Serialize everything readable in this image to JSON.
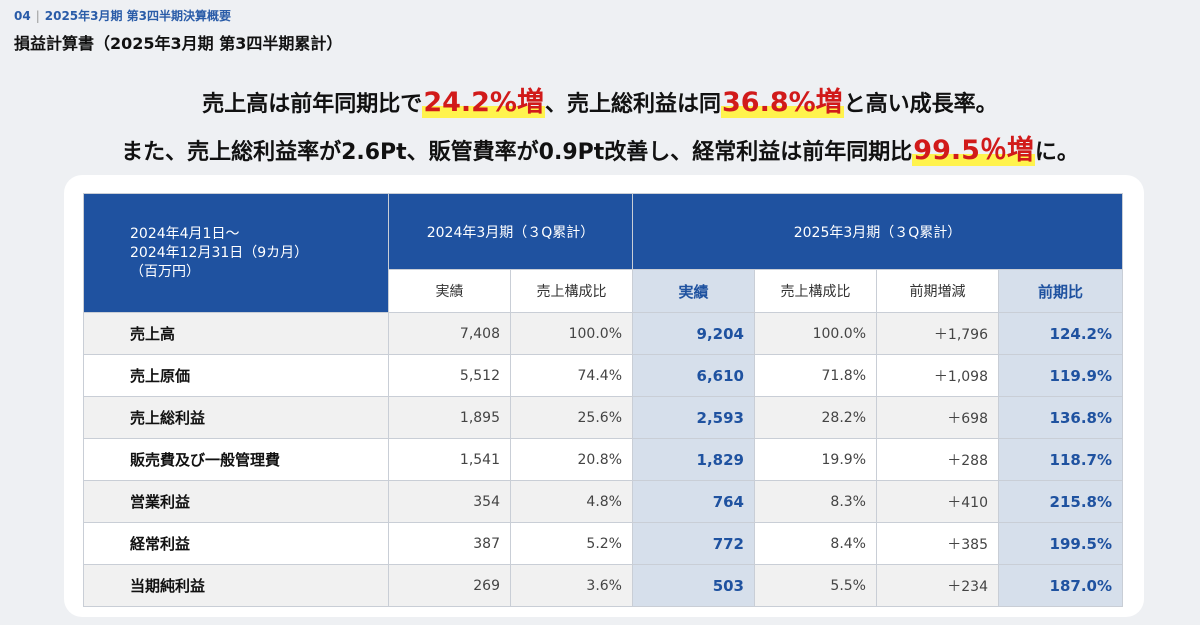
{
  "breadcrumb": {
    "num": "04",
    "text": "2025年3月期 第3四半期決算概要"
  },
  "page_title": "損益計算書（2025年3月期 第3四半期累計）",
  "headline1": {
    "a": "売上高は前年同期比で",
    "b": "24.2%増",
    "c": "、売上総利益は同",
    "d": "36.8%増",
    "e": "と高い成長率。"
  },
  "headline2": {
    "a": "また、売上総利益率が2.6Pt、販管費率が0.9Pt改善し、経常利益は前年同期比",
    "b": "99.5％増",
    "c": "に。"
  },
  "table": {
    "corner": [
      "2024年4月1日～",
      "2024年12月31日（9カ月）",
      "（百万円）"
    ],
    "group_prev": "2024年3月期（３Q累計）",
    "group_curr": "2025年3月期（３Q累計）",
    "sub": [
      "実績",
      "売上構成比",
      "実績",
      "売上構成比",
      "前期増減",
      "前期比"
    ],
    "rows": [
      {
        "label": "売上高",
        "prev": "7,408",
        "prev_ratio": "100.0%",
        "curr": "9,204",
        "curr_ratio": "100.0%",
        "diff": "＋1,796",
        "yoy": "124.2%"
      },
      {
        "label": "売上原価",
        "prev": "5,512",
        "prev_ratio": "74.4%",
        "curr": "6,610",
        "curr_ratio": "71.8%",
        "diff": "＋1,098",
        "yoy": "119.9%"
      },
      {
        "label": "売上総利益",
        "prev": "1,895",
        "prev_ratio": "25.6%",
        "curr": "2,593",
        "curr_ratio": "28.2%",
        "diff": "＋698",
        "yoy": "136.8%"
      },
      {
        "label": "販売費及び一般管理費",
        "prev": "1,541",
        "prev_ratio": "20.8%",
        "curr": "1,829",
        "curr_ratio": "19.9%",
        "diff": "＋288",
        "yoy": "118.7%"
      },
      {
        "label": "営業利益",
        "prev": "354",
        "prev_ratio": "4.8%",
        "curr": "764",
        "curr_ratio": "8.3%",
        "diff": "＋410",
        "yoy": "215.8%"
      },
      {
        "label": "経常利益",
        "prev": "387",
        "prev_ratio": "5.2%",
        "curr": "772",
        "curr_ratio": "8.4%",
        "diff": "＋385",
        "yoy": "199.5%"
      },
      {
        "label": "当期純利益",
        "prev": "269",
        "prev_ratio": "3.6%",
        "curr": "503",
        "curr_ratio": "5.5%",
        "diff": "＋234",
        "yoy": "187.0%"
      }
    ]
  },
  "colors": {
    "header_blue": "#1f52a0",
    "highlight_red": "#d11a1a",
    "marker_yellow": "#fff34d",
    "highlight_col": "#d6dfeb"
  }
}
